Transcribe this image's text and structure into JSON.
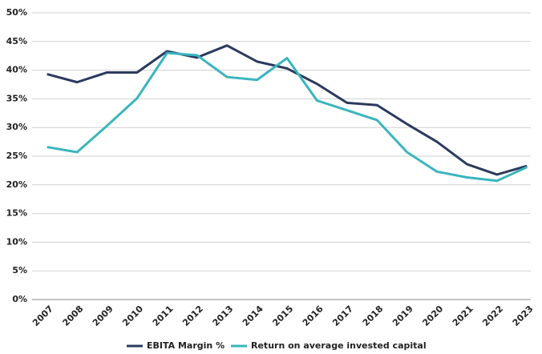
{
  "chart_data": {
    "type": "line",
    "categories": [
      "2007",
      "2008",
      "2009",
      "2010",
      "2011",
      "2012",
      "2013",
      "2014",
      "2015",
      "2016",
      "2017",
      "2018",
      "2019",
      "2020",
      "2021",
      "2022",
      "2023"
    ],
    "series": [
      {
        "name": "EBITA Margin %",
        "color": "#2b3a5e",
        "values": [
          39.3,
          37.9,
          39.6,
          39.6,
          43.3,
          42.2,
          44.3,
          41.5,
          40.3,
          37.6,
          34.3,
          33.9,
          30.6,
          27.5,
          23.6,
          21.8,
          23.3
        ]
      },
      {
        "name": "Return on average invested capital",
        "color": "#3ab5bd",
        "values": [
          26.6,
          25.7,
          30.3,
          35.1,
          43.0,
          42.6,
          38.8,
          38.3,
          42.1,
          34.7,
          33.0,
          31.3,
          25.7,
          22.3,
          21.3,
          20.7,
          23.1
        ]
      }
    ],
    "ylim": [
      0,
      50
    ],
    "yticks": [
      {
        "value": 0,
        "label": "0%"
      },
      {
        "value": 5,
        "label": "5%"
      },
      {
        "value": 10,
        "label": "10%"
      },
      {
        "value": 15,
        "label": "15%"
      },
      {
        "value": 20,
        "label": "20%"
      },
      {
        "value": 25,
        "label": "25%"
      },
      {
        "value": 30,
        "label": "30%"
      },
      {
        "value": 35,
        "label": "35%"
      },
      {
        "value": 40,
        "label": "40%"
      },
      {
        "value": 45,
        "label": "45%"
      },
      {
        "value": 50,
        "label": "50%"
      }
    ],
    "grid": true
  }
}
